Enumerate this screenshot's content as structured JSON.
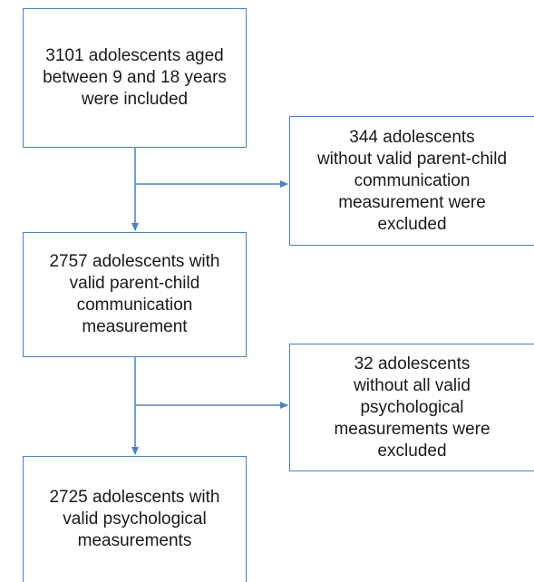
{
  "flowchart": {
    "steps": [
      {
        "text": "3101 adolescents aged\nbetween 9 and 18 years\nwere included"
      },
      {
        "text": "2757 adolescents with\nvalid parent-child\ncommunication\nmeasurement"
      },
      {
        "text": "2725 adolescents with\nvalid psychological\nmeasurements"
      }
    ],
    "exclusions": [
      {
        "text": "344 adolescents\nwithout valid parent-child\ncommunication\nmeasurement were\nexcluded"
      },
      {
        "text": "32 adolescents\nwithout all valid\npsychological\nmeasurements were\nexcluded"
      }
    ],
    "colors": {
      "border": "#4f81bd",
      "arrow": "#4f81bd",
      "text": "#1a1a1a",
      "background": "#ffffff"
    }
  }
}
